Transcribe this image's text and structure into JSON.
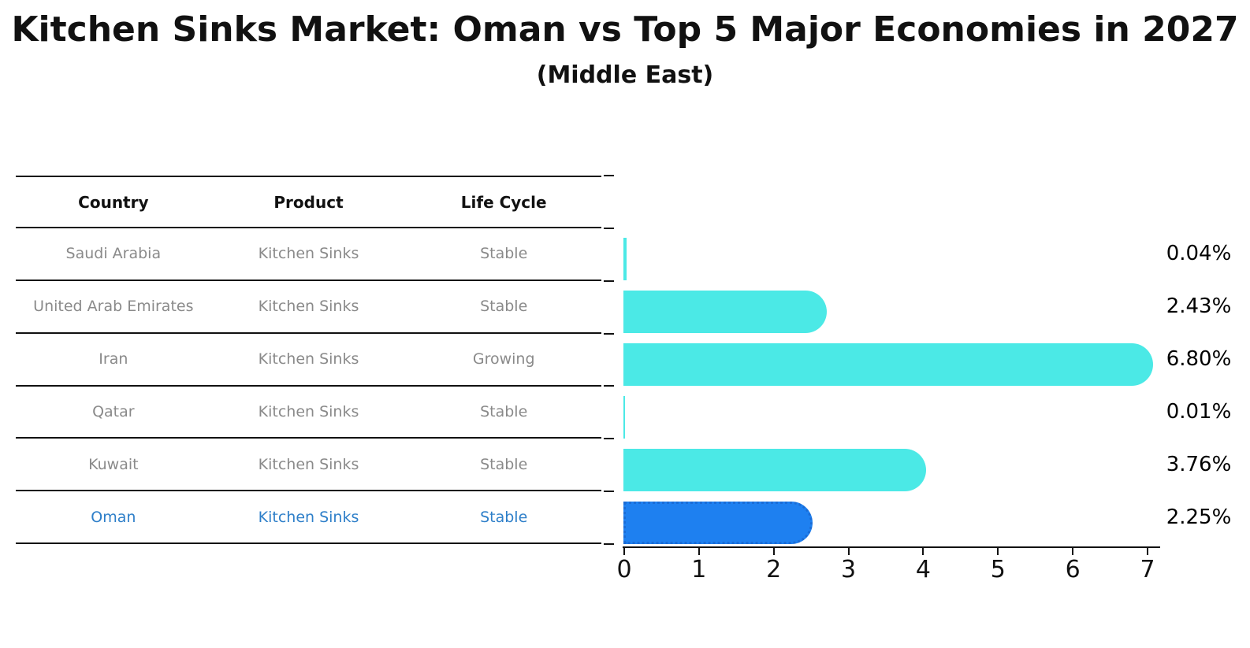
{
  "title": "Kitchen Sinks Market: Oman vs Top 5 Major Economies in 2027",
  "subtitle": "(Middle East)",
  "table": {
    "headers": [
      "Country",
      "Product",
      "Life Cycle"
    ],
    "rows": [
      {
        "country": "Saudi Arabia",
        "product": "Kitchen Sinks",
        "life_cycle": "Stable",
        "highlighted": false
      },
      {
        "country": "United Arab Emirates",
        "product": "Kitchen Sinks",
        "life_cycle": "Stable",
        "highlighted": false
      },
      {
        "country": "Iran",
        "product": "Kitchen Sinks",
        "life_cycle": "Growing",
        "highlighted": false
      },
      {
        "country": "Qatar",
        "product": "Kitchen Sinks",
        "life_cycle": "Stable",
        "highlighted": false
      },
      {
        "country": "Kuwait",
        "product": "Kitchen Sinks",
        "life_cycle": "Stable",
        "highlighted": false
      },
      {
        "country": "Oman",
        "product": "Kitchen Sinks",
        "life_cycle": "Stable",
        "highlighted": true
      }
    ]
  },
  "chart_data": {
    "type": "bar",
    "orientation": "horizontal",
    "title": "Kitchen Sinks Market: Oman vs Top 5 Major Economies in 2027",
    "subtitle": "(Middle East)",
    "categories": [
      "Saudi Arabia",
      "United Arab Emirates",
      "Iran",
      "Qatar",
      "Kuwait",
      "Oman"
    ],
    "values": [
      0.04,
      2.43,
      6.8,
      0.01,
      3.76,
      2.25
    ],
    "value_labels": [
      "0.04%",
      "2.43%",
      "6.80%",
      "0.01%",
      "3.76%",
      "2.25%"
    ],
    "unit": "percent",
    "xlabel": "",
    "ylabel": "",
    "xlim": [
      0,
      7
    ],
    "x_ticks": [
      "0",
      "1",
      "2",
      "3",
      "4",
      "5",
      "6",
      "7"
    ],
    "grid": false,
    "legend": "none",
    "bar_color": "#4BE9E6",
    "highlight_color": "#1E80F0",
    "highlight_border_color": "#1a6cd6",
    "highlight_index": 5,
    "highlight_text_color": "#2E7FC9"
  }
}
